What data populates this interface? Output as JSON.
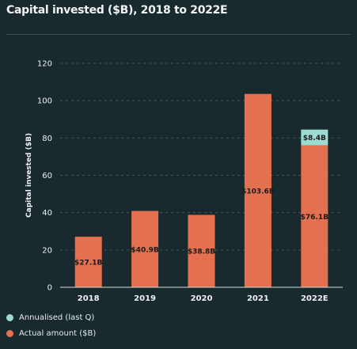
{
  "title": "Capital invested ($B), 2018 to 2022E",
  "colors": {
    "background": "#192a2e",
    "actual": "#e3714f",
    "annualised": "#9bdbd1",
    "grid": "#45575b",
    "text": "#eef1f1"
  },
  "legend": [
    {
      "label": "Annualised (last Q)",
      "color": "#9bdbd1"
    },
    {
      "label": "Actual amount ($B)",
      "color": "#e3714f"
    }
  ],
  "chart_data": {
    "type": "bar",
    "stacked": true,
    "categories": [
      "2018",
      "2019",
      "2020",
      "2021",
      "2022E"
    ],
    "series": [
      {
        "name": "Actual amount ($B)",
        "values": [
          27.1,
          40.9,
          38.8,
          103.6,
          76.1
        ],
        "labels": [
          "$27.1B",
          "$40.9B",
          "$38.8B",
          "$103.6B",
          "$76.1B"
        ]
      },
      {
        "name": "Annualised (last Q)",
        "values": [
          null,
          null,
          null,
          null,
          8.4
        ],
        "labels": [
          "",
          "",
          "",
          "",
          "$8.4B"
        ]
      }
    ],
    "ylabel": "Capital invested ($B)",
    "ylim": [
      0,
      120
    ],
    "yticks": [
      0,
      20,
      40,
      60,
      80,
      100,
      120
    ],
    "grid": true,
    "legend_position": "bottom-left"
  }
}
